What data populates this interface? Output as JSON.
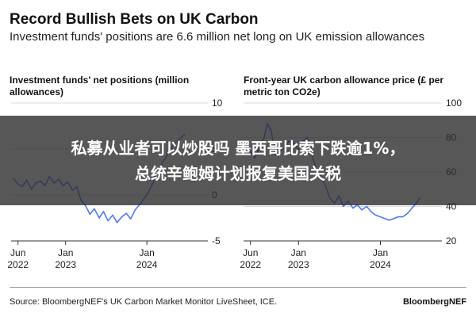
{
  "header": {
    "title": "Record Bullish Bets on UK Carbon",
    "subtitle": "Investment funds' positions are 6.6 million net long on UK emission allowances"
  },
  "overlay": {
    "line1": "私募从业者可以炒股吗 墨西哥比索下跌逾1%，",
    "line2": "总统辛鲍姆计划报复美国关税"
  },
  "footer": {
    "source": "Source: BloombergNEF's UK Carbon Market Monitor LiveSheet, ICE.",
    "brand": "BloombergNEF"
  },
  "colors": {
    "series": "#4c78ff",
    "axis": "#333333",
    "grid": "#dddddd"
  },
  "chart_data": [
    {
      "type": "line",
      "title": "Investment funds' net positions (million allowances)",
      "xlim": [
        "2022-05-01",
        "2024-10-01"
      ],
      "ylim": [
        -5,
        10
      ],
      "yticks": [
        10,
        5,
        0,
        -5
      ],
      "y_axis_side": "right",
      "xticks": [
        {
          "date": "2022-06-01",
          "label": [
            "Jun",
            "2022"
          ]
        },
        {
          "date": "2023-01-01",
          "label": [
            "Jan",
            "2023"
          ]
        },
        {
          "date": "2024-01-01",
          "label": [
            "Jan",
            "2024"
          ]
        }
      ],
      "series": [
        {
          "values": [
            {
              "x": "2022-05-10",
              "y": 1.8
            },
            {
              "x": "2022-06-01",
              "y": 1.2
            },
            {
              "x": "2022-06-20",
              "y": 0.9
            },
            {
              "x": "2022-07-10",
              "y": 1.6
            },
            {
              "x": "2022-08-01",
              "y": 0.6
            },
            {
              "x": "2022-08-20",
              "y": 1.3
            },
            {
              "x": "2022-09-10",
              "y": 1.5
            },
            {
              "x": "2022-10-01",
              "y": 1.0
            },
            {
              "x": "2022-10-20",
              "y": 2.0
            },
            {
              "x": "2022-11-10",
              "y": 1.3
            },
            {
              "x": "2022-12-01",
              "y": 1.7
            },
            {
              "x": "2022-12-20",
              "y": 1.0
            },
            {
              "x": "2023-01-10",
              "y": 1.4
            },
            {
              "x": "2023-02-01",
              "y": 0.5
            },
            {
              "x": "2023-02-20",
              "y": 0.9
            },
            {
              "x": "2023-03-10",
              "y": -0.5
            },
            {
              "x": "2023-04-01",
              "y": -1.2
            },
            {
              "x": "2023-04-20",
              "y": -2.1
            },
            {
              "x": "2023-05-10",
              "y": -1.5
            },
            {
              "x": "2023-06-01",
              "y": -2.5
            },
            {
              "x": "2023-06-20",
              "y": -1.8
            },
            {
              "x": "2023-07-10",
              "y": -2.8
            },
            {
              "x": "2023-08-01",
              "y": -2.2
            },
            {
              "x": "2023-08-20",
              "y": -3.0
            },
            {
              "x": "2023-09-10",
              "y": -2.4
            },
            {
              "x": "2023-10-01",
              "y": -2.0
            },
            {
              "x": "2023-10-20",
              "y": -2.6
            },
            {
              "x": "2023-11-10",
              "y": -1.6
            },
            {
              "x": "2023-12-01",
              "y": -1.0
            },
            {
              "x": "2023-12-20",
              "y": -0.4
            },
            {
              "x": "2024-01-10",
              "y": 0.4
            },
            {
              "x": "2024-02-01",
              "y": 1.5
            },
            {
              "x": "2024-02-20",
              "y": 2.5
            },
            {
              "x": "2024-03-10",
              "y": 3.5
            },
            {
              "x": "2024-04-01",
              "y": 4.3
            },
            {
              "x": "2024-04-20",
              "y": 5.1
            },
            {
              "x": "2024-05-10",
              "y": 5.7
            },
            {
              "x": "2024-06-01",
              "y": 6.2
            },
            {
              "x": "2024-06-20",
              "y": 6.6
            }
          ]
        }
      ]
    },
    {
      "type": "line",
      "title": "Front-year UK carbon allowance price (£ per metric ton CO2e)",
      "xlim": [
        "2022-05-01",
        "2024-10-01"
      ],
      "ylim": [
        20,
        100
      ],
      "yticks": [
        100,
        80,
        60,
        40,
        20
      ],
      "y_axis_side": "right",
      "xticks": [
        {
          "date": "2022-06-01",
          "label": [
            "Jun",
            "2022"
          ]
        },
        {
          "date": "2023-01-01",
          "label": [
            "Jan",
            "2023"
          ]
        },
        {
          "date": "2024-01-01",
          "label": [
            "Jan",
            "2024"
          ]
        }
      ],
      "series": [
        {
          "values": [
            {
              "x": "2022-05-10",
              "y": 76
            },
            {
              "x": "2022-06-01",
              "y": 72
            },
            {
              "x": "2022-06-20",
              "y": 68
            },
            {
              "x": "2022-07-10",
              "y": 74
            },
            {
              "x": "2022-08-01",
              "y": 80
            },
            {
              "x": "2022-08-15",
              "y": 88
            },
            {
              "x": "2022-09-01",
              "y": 84
            },
            {
              "x": "2022-09-20",
              "y": 70
            },
            {
              "x": "2022-10-10",
              "y": 72
            },
            {
              "x": "2022-11-01",
              "y": 74
            },
            {
              "x": "2022-11-20",
              "y": 78
            },
            {
              "x": "2022-12-10",
              "y": 77
            },
            {
              "x": "2023-01-01",
              "y": 73
            },
            {
              "x": "2023-01-20",
              "y": 78
            },
            {
              "x": "2023-02-10",
              "y": 80
            },
            {
              "x": "2023-03-01",
              "y": 70
            },
            {
              "x": "2023-03-20",
              "y": 62
            },
            {
              "x": "2023-04-10",
              "y": 58
            },
            {
              "x": "2023-05-01",
              "y": 52
            },
            {
              "x": "2023-05-20",
              "y": 45
            },
            {
              "x": "2023-06-10",
              "y": 42
            },
            {
              "x": "2023-07-01",
              "y": 46
            },
            {
              "x": "2023-07-20",
              "y": 40
            },
            {
              "x": "2023-08-10",
              "y": 43
            },
            {
              "x": "2023-09-01",
              "y": 39
            },
            {
              "x": "2023-09-20",
              "y": 41
            },
            {
              "x": "2023-10-10",
              "y": 38
            },
            {
              "x": "2023-11-01",
              "y": 40
            },
            {
              "x": "2023-11-20",
              "y": 37
            },
            {
              "x": "2023-12-10",
              "y": 35
            },
            {
              "x": "2024-01-01",
              "y": 34
            },
            {
              "x": "2024-01-20",
              "y": 33
            },
            {
              "x": "2024-02-10",
              "y": 32
            },
            {
              "x": "2024-03-01",
              "y": 33
            },
            {
              "x": "2024-03-20",
              "y": 34
            },
            {
              "x": "2024-04-10",
              "y": 34
            },
            {
              "x": "2024-05-01",
              "y": 36
            },
            {
              "x": "2024-05-20",
              "y": 39
            },
            {
              "x": "2024-06-10",
              "y": 42
            },
            {
              "x": "2024-06-25",
              "y": 45
            }
          ]
        }
      ]
    }
  ]
}
